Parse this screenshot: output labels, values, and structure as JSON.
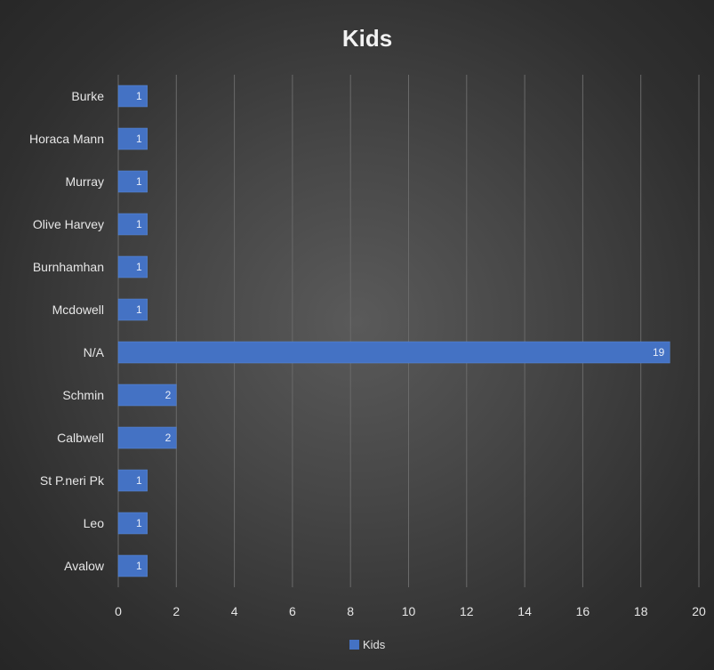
{
  "chart_data": {
    "type": "bar",
    "orientation": "horizontal",
    "title": "Kids",
    "categories": [
      "Burke",
      "Horaca Mann",
      "Murray",
      "Olive Harvey",
      "Burnhamhan",
      "Mcdowell",
      "N/A",
      "Schmin",
      "Calbwell",
      "St P.neri Pk",
      "Leo",
      "Avalow"
    ],
    "series": [
      {
        "name": "Kids",
        "values": [
          1,
          1,
          1,
          1,
          1,
          1,
          19,
          2,
          2,
          1,
          1,
          1
        ],
        "color": "#4472c4"
      }
    ],
    "xlim": [
      0,
      20
    ],
    "xticks": [
      "0",
      "2",
      "4",
      "6",
      "8",
      "10",
      "12",
      "14",
      "16",
      "18",
      "20"
    ],
    "grid": true,
    "data_labels": true,
    "legend_position": "bottom",
    "colors": {
      "background": "#3a3a3a",
      "bar": "#4472c4",
      "text": "#e6e6e6",
      "grid": "#6a6a6a"
    }
  }
}
